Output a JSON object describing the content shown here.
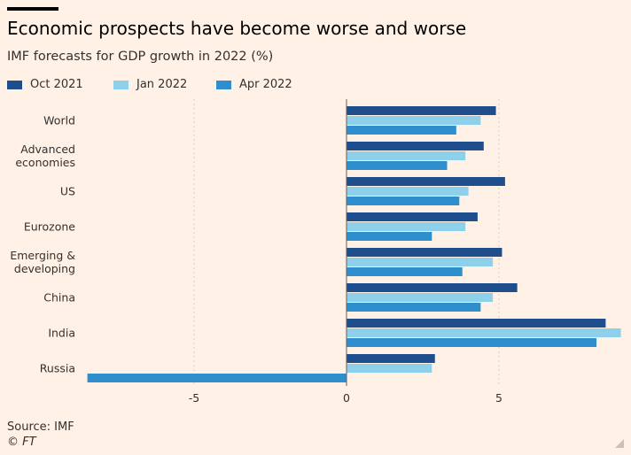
{
  "header": {
    "title": "Economic prospects have become worse and worse",
    "subtitle": "IMF forecasts for GDP growth in 2022 (%)"
  },
  "legend": {
    "items": [
      {
        "label": "Oct 2021",
        "color": "#1F4E8C"
      },
      {
        "label": "Jan 2022",
        "color": "#8ECFEA"
      },
      {
        "label": "Apr 2022",
        "color": "#2E8FCC"
      }
    ]
  },
  "footer": {
    "source": "Source: IMF",
    "credit": "© FT"
  },
  "chart_data": {
    "type": "bar",
    "orientation": "horizontal",
    "categories": [
      "World",
      "Advanced economies",
      "US",
      "Eurozone",
      "Emerging & developing",
      "China",
      "India",
      "Russia"
    ],
    "category_lines": [
      [
        "World"
      ],
      [
        "Advanced",
        "economies"
      ],
      [
        "US"
      ],
      [
        "Eurozone"
      ],
      [
        "Emerging &",
        "developing"
      ],
      [
        "China"
      ],
      [
        "India"
      ],
      [
        "Russia"
      ]
    ],
    "series": [
      {
        "name": "Oct 2021",
        "color": "#1F4E8C",
        "values": [
          4.9,
          4.5,
          5.2,
          4.3,
          5.1,
          5.6,
          8.5,
          2.9
        ]
      },
      {
        "name": "Jan 2022",
        "color": "#8ECFEA",
        "values": [
          4.4,
          3.9,
          4.0,
          3.9,
          4.8,
          4.8,
          9.0,
          2.8
        ]
      },
      {
        "name": "Apr 2022",
        "color": "#2E8FCC",
        "values": [
          3.6,
          3.3,
          3.7,
          2.8,
          3.8,
          4.4,
          8.2,
          -8.5
        ]
      }
    ],
    "xlim": [
      -8.5,
      9.2
    ],
    "xticks": [
      -5,
      0,
      5
    ],
    "xtick_labels": [
      "-5",
      "0",
      "5"
    ],
    "grid": true
  }
}
